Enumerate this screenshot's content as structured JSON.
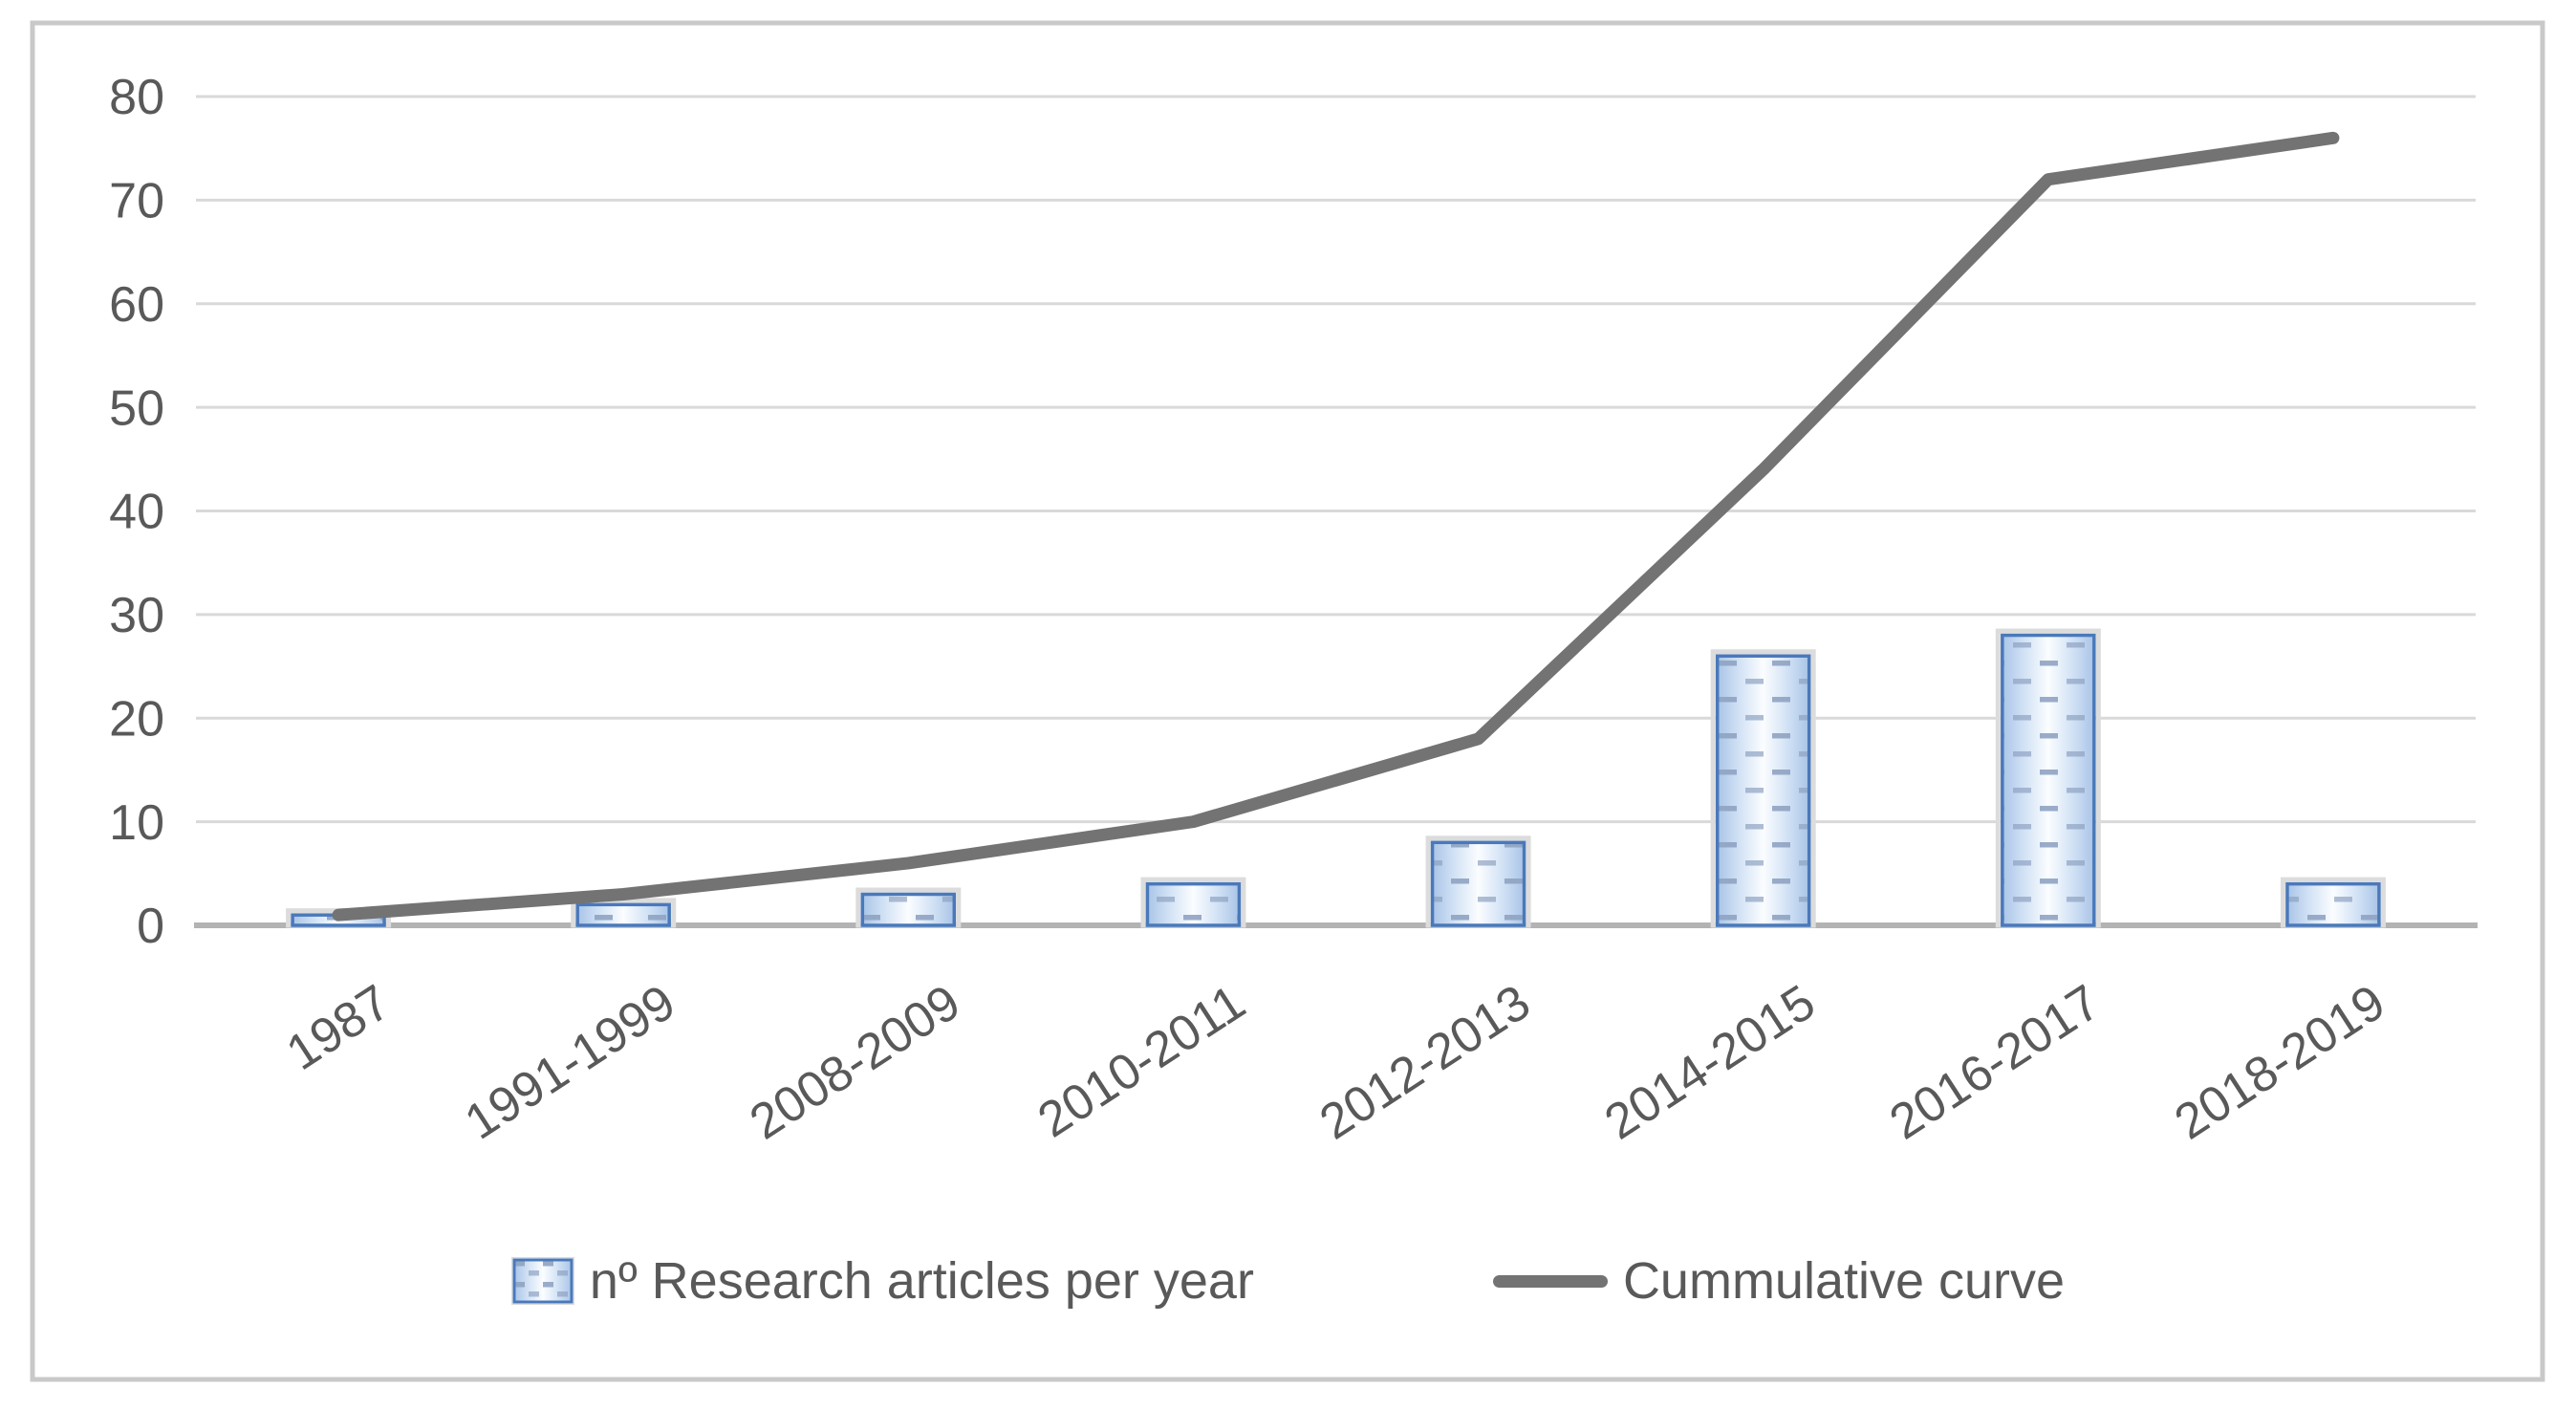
{
  "figure": {
    "background": "#ffffff",
    "border_color": "#c9c9c9"
  },
  "chart_data": {
    "type": "bar",
    "subtype": "bar-line-combo",
    "title": "",
    "categories": [
      "1987",
      "1991-1999",
      "2008-2009",
      "2010-2011",
      "2012-2013",
      "2014-2015",
      "2016-2017",
      "2018-2019"
    ],
    "series": [
      {
        "name": "nº Research articles per year",
        "type": "bar",
        "values": [
          1,
          2,
          3,
          4,
          8,
          26,
          28,
          4
        ],
        "fill_style": "light blue gradient with short dash pattern",
        "border_color": "#4a79ba"
      },
      {
        "name": "Cummulative curve",
        "type": "line",
        "values": [
          1,
          3,
          6,
          10,
          18,
          44,
          72,
          76
        ],
        "color": "#737373"
      }
    ],
    "xlabel": "",
    "ylabel": "",
    "ylim": [
      0,
      80
    ],
    "yticks": [
      0,
      10,
      20,
      30,
      40,
      50,
      60,
      70,
      80
    ],
    "grid": true,
    "legend_position": "bottom",
    "x_tick_rotation_deg": -33
  },
  "colors": {
    "gridline": "#d9d9d9",
    "axis_line": "#b3b3b3",
    "tick_text": "#595959",
    "legend_text": "#595959",
    "bar_border": "#4a79ba",
    "bar_outer_outline": "#dcdcdc",
    "bar_gradient_edge": "#a9c4e7",
    "bar_gradient_mid": "#cfe0f4",
    "bar_gradient_center": "#fbfdff",
    "bar_dash": "#8fa3c2",
    "line": "#737373"
  }
}
